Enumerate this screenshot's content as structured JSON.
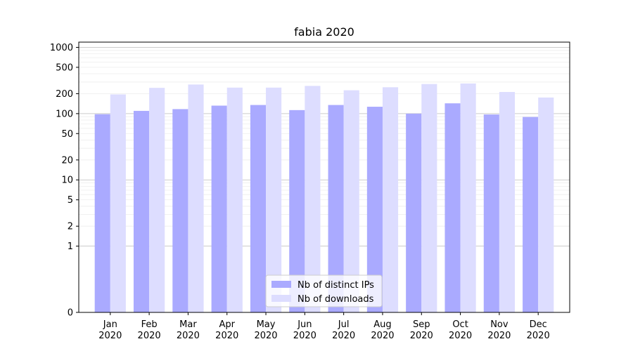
{
  "chart_data": {
    "type": "bar",
    "title": "fabia 2020",
    "xlabel": "",
    "ylabel": "",
    "yscale": "symlog",
    "ylim": [
      0,
      1200
    ],
    "yticks": [
      0,
      1,
      2,
      5,
      10,
      20,
      50,
      100,
      200,
      500,
      1000
    ],
    "ytick_labels": [
      "0",
      "1",
      "2",
      "5",
      "10",
      "20",
      "50",
      "100",
      "200",
      "500",
      "1000"
    ],
    "categories": [
      "Jan\n2020",
      "Feb\n2020",
      "Mar\n2020",
      "Apr\n2020",
      "May\n2020",
      "Jun\n2020",
      "Jul\n2020",
      "Aug\n2020",
      "Sep\n2020",
      "Oct\n2020",
      "Nov\n2020",
      "Dec\n2020"
    ],
    "category_labels": [
      {
        "month": "Jan",
        "year": "2020"
      },
      {
        "month": "Feb",
        "year": "2020"
      },
      {
        "month": "Mar",
        "year": "2020"
      },
      {
        "month": "Apr",
        "year": "2020"
      },
      {
        "month": "May",
        "year": "2020"
      },
      {
        "month": "Jun",
        "year": "2020"
      },
      {
        "month": "Jul",
        "year": "2020"
      },
      {
        "month": "Aug",
        "year": "2020"
      },
      {
        "month": "Sep",
        "year": "2020"
      },
      {
        "month": "Oct",
        "year": "2020"
      },
      {
        "month": "Nov",
        "year": "2020"
      },
      {
        "month": "Dec",
        "year": "2020"
      }
    ],
    "series": [
      {
        "name": "Nb of distinct IPs",
        "color": "#aaaaff",
        "values": [
          98,
          110,
          117,
          132,
          135,
          113,
          135,
          127,
          100,
          143,
          97,
          89
        ]
      },
      {
        "name": "Nb of downloads",
        "color": "#ddddff",
        "values": [
          195,
          245,
          275,
          247,
          247,
          262,
          225,
          250,
          280,
          285,
          212,
          175
        ]
      }
    ],
    "grid": true,
    "legend_position": "bottom-center"
  }
}
